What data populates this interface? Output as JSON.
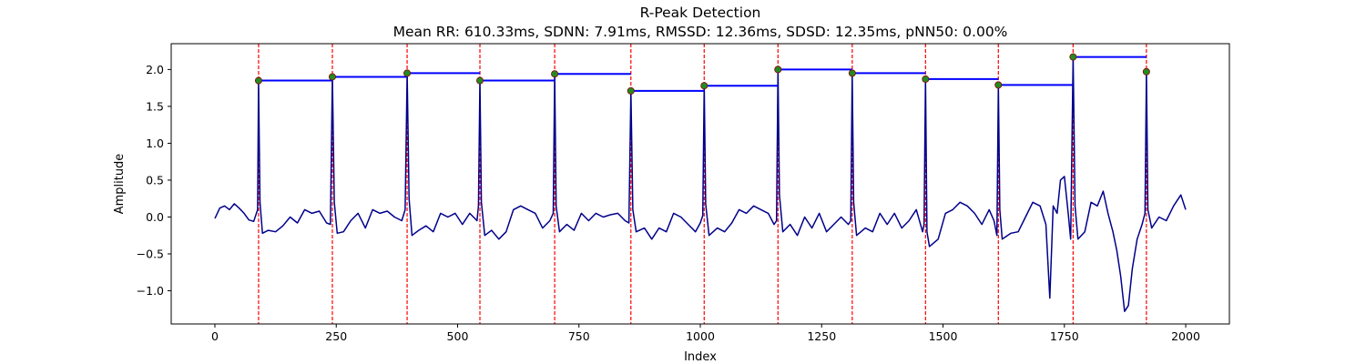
{
  "chart_data": {
    "type": "line",
    "title": "R-Peak Detection",
    "subtitle": "Mean RR: 610.33ms, SDNN: 7.91ms, RMSSD: 12.36ms, SDSD: 12.35ms, pNN50: 0.00%",
    "xlabel": "Index",
    "ylabel": "Amplitude",
    "xlim": [
      -90,
      2090
    ],
    "ylim": [
      -1.45,
      2.35
    ],
    "xticks": [
      0,
      250,
      500,
      750,
      1000,
      1250,
      1500,
      1750,
      2000
    ],
    "yticks": [
      -1.0,
      -0.5,
      0.0,
      0.5,
      1.0,
      1.5,
      2.0
    ],
    "grid": false,
    "colors": {
      "signal": "#00008b",
      "peak_line": "#ff0000",
      "rr_segment": "#0000ff",
      "peak_marker_fill": "#228b22",
      "peak_marker_edge": "#8b0000"
    },
    "r_peaks": [
      {
        "x": 90,
        "y": 1.85
      },
      {
        "x": 242,
        "y": 1.9
      },
      {
        "x": 396,
        "y": 1.95
      },
      {
        "x": 546,
        "y": 1.85
      },
      {
        "x": 700,
        "y": 1.94
      },
      {
        "x": 857,
        "y": 1.71
      },
      {
        "x": 1008,
        "y": 1.78
      },
      {
        "x": 1160,
        "y": 2.0
      },
      {
        "x": 1313,
        "y": 1.95
      },
      {
        "x": 1464,
        "y": 1.87
      },
      {
        "x": 1614,
        "y": 1.79
      },
      {
        "x": 1768,
        "y": 2.17
      },
      {
        "x": 1919,
        "y": 1.97
      }
    ],
    "signal": {
      "x": [
        0,
        10,
        20,
        30,
        40,
        50,
        60,
        70,
        80,
        88,
        90,
        93,
        98,
        110,
        125,
        140,
        155,
        170,
        185,
        200,
        215,
        230,
        238,
        242,
        246,
        252,
        265,
        280,
        295,
        310,
        325,
        340,
        355,
        370,
        385,
        392,
        396,
        400,
        406,
        420,
        435,
        450,
        465,
        480,
        495,
        510,
        525,
        540,
        543,
        546,
        549,
        556,
        570,
        585,
        600,
        615,
        630,
        645,
        660,
        675,
        690,
        697,
        700,
        703,
        710,
        725,
        740,
        755,
        770,
        785,
        800,
        815,
        830,
        845,
        853,
        857,
        861,
        868,
        885,
        900,
        915,
        930,
        945,
        960,
        975,
        990,
        1000,
        1005,
        1008,
        1011,
        1018,
        1035,
        1050,
        1065,
        1080,
        1095,
        1110,
        1125,
        1140,
        1152,
        1157,
        1160,
        1163,
        1170,
        1185,
        1200,
        1215,
        1230,
        1245,
        1260,
        1275,
        1290,
        1305,
        1310,
        1313,
        1316,
        1322,
        1340,
        1355,
        1370,
        1385,
        1400,
        1415,
        1430,
        1445,
        1458,
        1461,
        1464,
        1467,
        1472,
        1490,
        1505,
        1520,
        1535,
        1550,
        1565,
        1580,
        1595,
        1605,
        1611,
        1614,
        1617,
        1622,
        1640,
        1655,
        1670,
        1685,
        1700,
        1712,
        1720,
        1727,
        1735,
        1742,
        1750,
        1758,
        1763,
        1768,
        1772,
        1778,
        1792,
        1805,
        1818,
        1830,
        1840,
        1850,
        1858,
        1866,
        1874,
        1882,
        1890,
        1900,
        1910,
        1916,
        1919,
        1922,
        1930,
        1945,
        1960,
        1975,
        1990,
        2000
      ],
      "y": [
        -0.02,
        0.12,
        0.15,
        0.1,
        0.18,
        0.12,
        0.05,
        -0.04,
        -0.06,
        0.1,
        1.85,
        0.2,
        -0.22,
        -0.18,
        -0.2,
        -0.12,
        0.0,
        -0.08,
        0.1,
        0.05,
        0.08,
        -0.08,
        -0.1,
        1.9,
        0.2,
        -0.22,
        -0.2,
        -0.05,
        0.05,
        -0.15,
        0.1,
        0.05,
        0.08,
        0.0,
        -0.05,
        0.1,
        1.95,
        0.25,
        -0.25,
        -0.18,
        -0.12,
        -0.2,
        0.05,
        0.0,
        0.05,
        -0.1,
        0.05,
        -0.05,
        0.15,
        1.85,
        0.2,
        -0.25,
        -0.18,
        -0.3,
        -0.2,
        0.1,
        0.15,
        0.1,
        0.05,
        -0.15,
        -0.05,
        0.05,
        1.94,
        0.15,
        -0.2,
        -0.1,
        -0.18,
        0.05,
        -0.05,
        0.05,
        0.0,
        0.03,
        0.05,
        -0.05,
        -0.08,
        1.71,
        0.1,
        -0.2,
        -0.15,
        -0.3,
        -0.15,
        -0.2,
        0.05,
        0.0,
        -0.1,
        -0.2,
        -0.08,
        0.02,
        1.78,
        0.18,
        -0.25,
        -0.15,
        -0.2,
        -0.08,
        0.1,
        0.05,
        0.15,
        0.1,
        0.05,
        -0.1,
        -0.05,
        2.0,
        0.3,
        -0.2,
        -0.1,
        -0.25,
        0.0,
        -0.15,
        0.05,
        -0.2,
        -0.1,
        0.0,
        -0.1,
        -0.05,
        1.95,
        0.2,
        -0.25,
        -0.15,
        -0.2,
        0.05,
        -0.1,
        0.05,
        -0.15,
        -0.05,
        0.1,
        -0.2,
        -0.1,
        1.87,
        -0.2,
        -0.4,
        -0.3,
        0.05,
        0.1,
        0.2,
        0.15,
        0.05,
        -0.1,
        0.1,
        -0.05,
        -0.25,
        1.79,
        0.1,
        -0.3,
        -0.22,
        -0.2,
        0.0,
        0.2,
        0.15,
        -0.1,
        -1.1,
        0.15,
        0.05,
        0.5,
        0.55,
        0.05,
        -0.3,
        2.17,
        0.15,
        -0.3,
        -0.2,
        0.2,
        0.15,
        0.35,
        0.05,
        -0.2,
        -0.45,
        -0.8,
        -1.28,
        -1.2,
        -0.7,
        -0.3,
        -0.1,
        0.05,
        1.97,
        0.1,
        -0.15,
        0.0,
        -0.05,
        0.15,
        0.3,
        0.1
      ]
    }
  }
}
